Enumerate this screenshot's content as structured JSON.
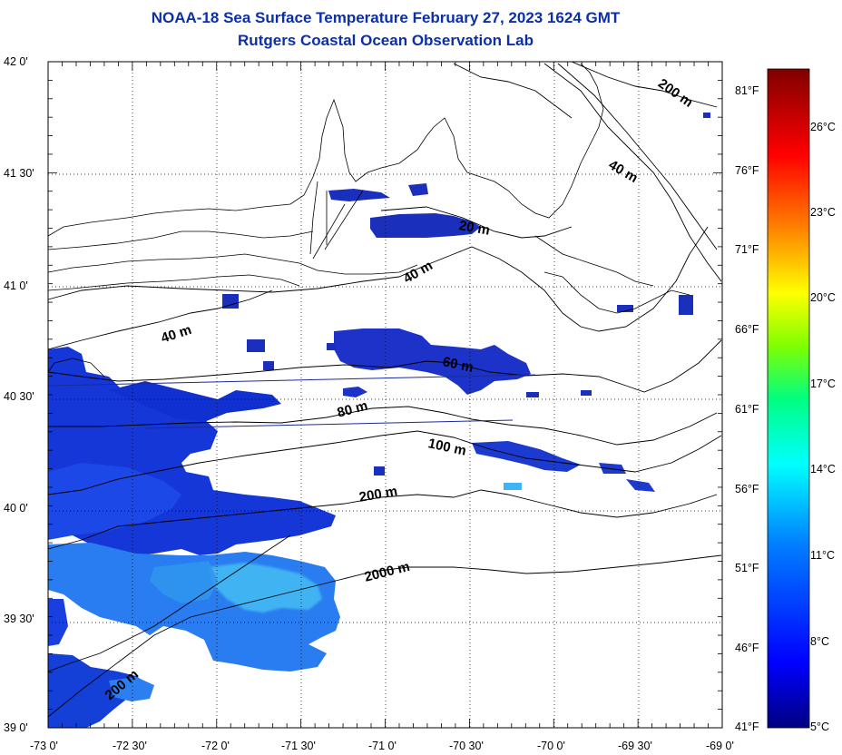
{
  "header": {
    "title": "NOAA-18 Sea Surface Temperature February 27, 2023 1624 GMT",
    "subtitle": "Rutgers Coastal Ocean Observation Lab"
  },
  "map": {
    "lon_labels": [
      "-73 0'",
      "-72 30'",
      "-72 0'",
      "-71 30'",
      "-71 0'",
      "-70 30'",
      "-70 0'",
      "-69 30'",
      "-69 0'"
    ],
    "lat_labels": [
      "42 0'",
      "41 30'",
      "41 0'",
      "40 30'",
      "40 0'",
      "39 30'",
      "39 0'"
    ],
    "depth_contours": [
      "200 m",
      "40 m",
      "20 m",
      "40 m",
      "40 m",
      "60 m",
      "80 m",
      "100 m",
      "200 m",
      "2000 m",
      "200 m"
    ],
    "colors": {
      "land": "#ffffff",
      "contour": "#000000",
      "grid": "#000000"
    }
  },
  "colorbar": {
    "fahrenheit_labels": [
      "81°F",
      "76°F",
      "71°F",
      "66°F",
      "61°F",
      "56°F",
      "51°F",
      "46°F",
      "41°F"
    ],
    "celsius_labels": [
      "26°C",
      "23°C",
      "20°C",
      "17°C",
      "14°C",
      "11°C",
      "8°C",
      "5°C"
    ],
    "range_celsius": [
      5,
      28
    ],
    "colors": [
      "#000080",
      "#0000ff",
      "#0080ff",
      "#00ffff",
      "#00ff80",
      "#80ff00",
      "#ffff00",
      "#ff8000",
      "#ff0000",
      "#800000"
    ]
  }
}
